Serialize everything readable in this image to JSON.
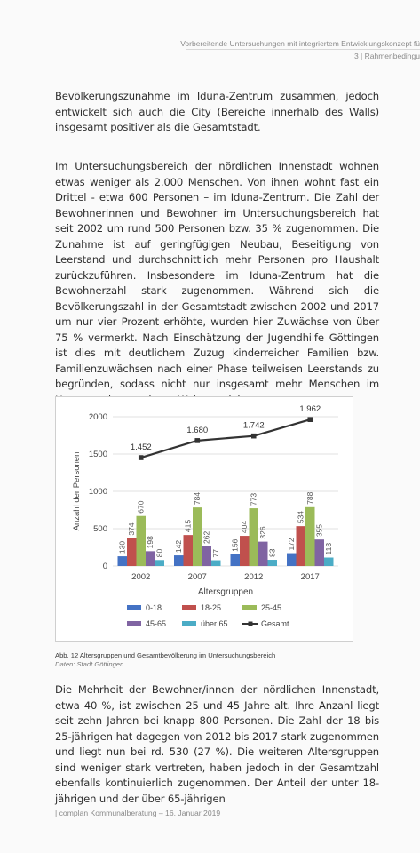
{
  "header": {
    "line1": "Vorbereitende Untersuchungen mit integriertem Entwicklungskonzept fü",
    "line2": "3 | Rahmenbedingu"
  },
  "paragraphs": [
    "Bevölkerungszunahme im Iduna-Zentrum zusammen, jedoch entwickelt sich auch die City (Bereiche innerhalb des Walls) insgesamt positiver als die Gesamtstadt.",
    "Im Untersuchungsbereich der nördlichen Innenstadt wohnen etwas weniger als 2.000 Menschen. Von ihnen wohnt fast ein Drittel - etwa 600 Personen – im Iduna-Zentrum. Die Zahl der Bewohnerinnen und Bewohner im Untersuchungsbereich hat seit 2002 um rund 500 Personen bzw. 35 % zugenommen. Die Zunahme ist auf geringfügigen Neubau, Beseitigung von Leerstand und durchschnittlich mehr Personen pro Haushalt zurückzuführen. Insbesondere im Iduna-Zentrum hat die Bewohnerzahl stark zugenommen. Während sich die Bevölkerungszahl in der Gesamtstadt zwischen 2002 und 2017 um nur vier Prozent erhöhte, wurden hier Zuwächse von über 75 % vermerkt. Nach Einschätzung der Jugendhilfe Göttingen ist dies mit deutlichem Zuzug kinderreicher Familien bzw. Familienzuwächsen nach einer Phase teilweisen Leerstands zu begründen, sodass nicht nur insgesamt mehr Menschen im Haus, sondern auch pro Wohnung leben.",
    "Die Mehrheit der Bewohner/innen der nördlichen Innenstadt, etwa 40 %, ist zwischen 25 und 45 Jahre alt. Ihre Anzahl liegt seit zehn Jahren bei knapp 800 Personen. Die Zahl der 18 bis 25-jährigen hat dagegen von 2012 bis 2017 stark zugenommen und liegt nun bei rd. 530 (27 %). Die weiteren Altersgruppen sind weniger stark vertreten, haben jedoch in der Gesamtzahl ebenfalls kontinuierlich zugenommen. Der Anteil der unter 18-jährigen und der über 65-jährigen"
  ],
  "chart_data": {
    "type": "bar",
    "categories": [
      "2002",
      "2007",
      "2012",
      "2017"
    ],
    "series": [
      {
        "name": "0-18",
        "color": "#4472c4",
        "values": [
          130,
          142,
          156,
          172
        ]
      },
      {
        "name": "18-25",
        "color": "#c0504d",
        "values": [
          374,
          415,
          404,
          534
        ]
      },
      {
        "name": "25-45",
        "color": "#9bbb59",
        "values": [
          670,
          784,
          773,
          788
        ]
      },
      {
        "name": "45-65",
        "color": "#8064a2",
        "values": [
          198,
          262,
          326,
          355
        ]
      },
      {
        "name": "über 65",
        "color": "#4bacc6",
        "values": [
          80,
          77,
          83,
          113
        ]
      }
    ],
    "line_series": {
      "name": "Gesamt",
      "color": "#333333",
      "values": [
        1452,
        1680,
        1742,
        1962
      ],
      "labels": [
        "1.452",
        "1.680",
        "1.742",
        "1.962"
      ]
    },
    "xlabel": "Altersgruppen",
    "ylabel": "Anzahl der Personen",
    "ylim": [
      0,
      2000
    ],
    "yticks": [
      0,
      500,
      1000,
      1500,
      2000
    ],
    "grid": true,
    "legend_position": "bottom"
  },
  "caption": {
    "text": "Abb. 12 Altersgruppen und Gesamtbevölkerung im Untersuchungsbereich",
    "source": "Daten: Stadt Göttingen"
  },
  "footer": "| complan Kommunalberatung – 16. Januar 2019"
}
